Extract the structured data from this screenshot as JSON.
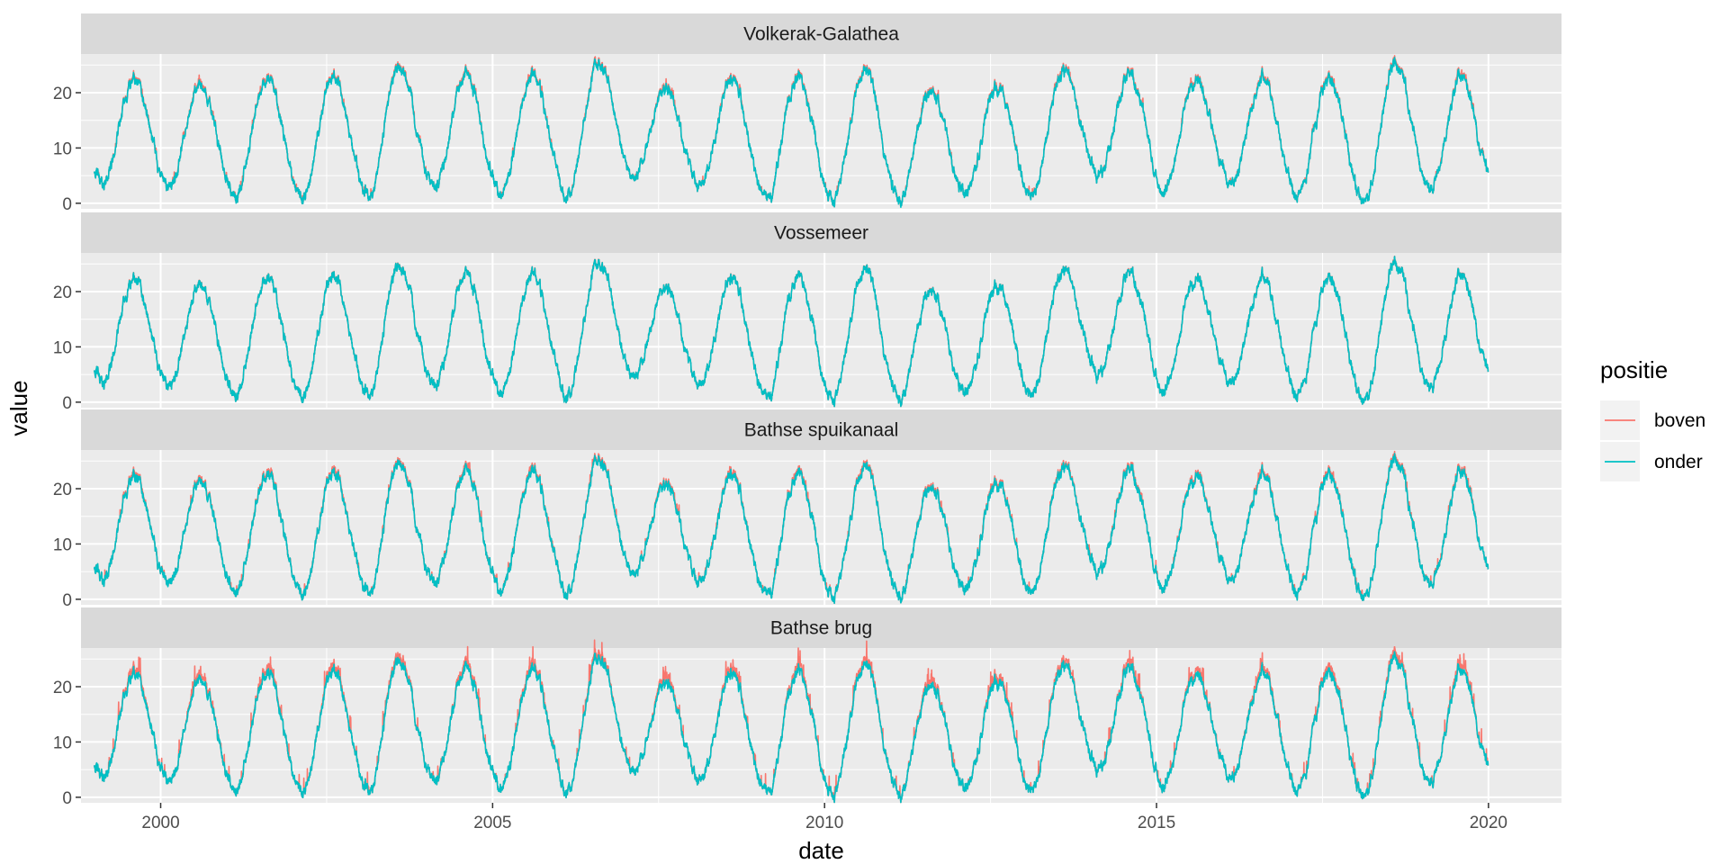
{
  "chart_data": {
    "type": "line",
    "facet_by": "location",
    "xlabel": "date",
    "ylabel": "value",
    "xlim": [
      1998.8,
      2021.1
    ],
    "ylim": [
      -1,
      27
    ],
    "x_ticks": [
      2000,
      2005,
      2010,
      2015,
      2020
    ],
    "y_ticks": [
      0,
      10,
      20
    ],
    "grid": true,
    "legend": {
      "title": "positie",
      "position": "right",
      "entries": [
        {
          "name": "boven",
          "color": "#F8766D"
        },
        {
          "name": "onder",
          "color": "#00BFC4"
        }
      ]
    },
    "x_range": [
      1999.0,
      2020.0
    ],
    "seasonal_pattern": {
      "annual_min_month": "February",
      "annual_max_month": "August",
      "typical_range": [
        1,
        24
      ]
    },
    "yearly_extremes": [
      {
        "year": 1999,
        "min": 3.5,
        "max": 22
      },
      {
        "year": 2000,
        "min": 3.0,
        "max": 21
      },
      {
        "year": 2001,
        "min": 1.5,
        "max": 22.5
      },
      {
        "year": 2002,
        "min": 1.0,
        "max": 22.5
      },
      {
        "year": 2003,
        "min": 1.5,
        "max": 24.5
      },
      {
        "year": 2004,
        "min": 3.0,
        "max": 23
      },
      {
        "year": 2005,
        "min": 1.5,
        "max": 23
      },
      {
        "year": 2006,
        "min": 1.5,
        "max": 25.5
      },
      {
        "year": 2007,
        "min": 5.0,
        "max": 20.5
      },
      {
        "year": 2008,
        "min": 3.0,
        "max": 22
      },
      {
        "year": 2009,
        "min": 1.0,
        "max": 22.5
      },
      {
        "year": 2010,
        "min": 0.5,
        "max": 24
      },
      {
        "year": 2011,
        "min": 0.5,
        "max": 20
      },
      {
        "year": 2012,
        "min": 2.0,
        "max": 21
      },
      {
        "year": 2013,
        "min": 1.5,
        "max": 24
      },
      {
        "year": 2014,
        "min": 5.0,
        "max": 23
      },
      {
        "year": 2015,
        "min": 2.5,
        "max": 22
      },
      {
        "year": 2016,
        "min": 3.5,
        "max": 22.5
      },
      {
        "year": 2017,
        "min": 1.5,
        "max": 22.5
      },
      {
        "year": 2018,
        "min": 0.0,
        "max": 25.0
      },
      {
        "year": 2019,
        "min": 2.5,
        "max": 23.5
      },
      {
        "year": 2020,
        "min": 6.0,
        "max": 6.0
      }
    ],
    "panels": [
      {
        "title": "Volkerak-Galathea",
        "series": [
          {
            "name": "boven",
            "color": "#F8766D",
            "values_desc": "nearly identical to onder, slightly higher in summer peaks"
          },
          {
            "name": "onder",
            "color": "#00BFC4"
          }
        ]
      },
      {
        "title": "Vossemeer",
        "series": [
          {
            "name": "boven",
            "color": "#F8766D"
          },
          {
            "name": "onder",
            "color": "#00BFC4"
          }
        ]
      },
      {
        "title": "Bathse spuikanaal",
        "series": [
          {
            "name": "boven",
            "color": "#F8766D"
          },
          {
            "name": "onder",
            "color": "#00BFC4"
          }
        ]
      },
      {
        "title": "Bathse brug",
        "series": [
          {
            "name": "boven",
            "color": "#F8766D"
          },
          {
            "name": "onder",
            "color": "#00BFC4"
          }
        ]
      }
    ],
    "panel_boven_excess": [
      0.6,
      0.1,
      0.8,
      1.8
    ],
    "colors": {
      "panel_bg": "#EBEBEB",
      "strip_bg": "#D9D9D9",
      "grid": "#FFFFFF",
      "boven": "#F8766D",
      "onder": "#00BFC4"
    }
  }
}
